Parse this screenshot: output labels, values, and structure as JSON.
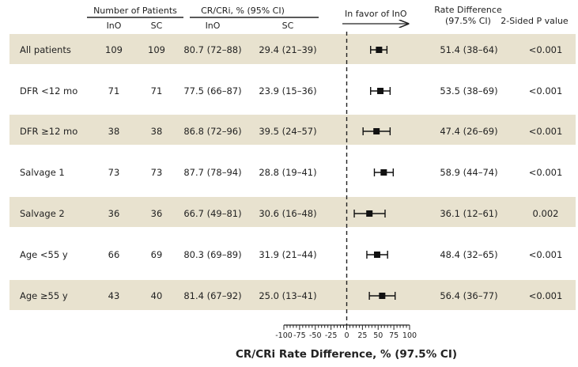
{
  "headers": {
    "group_patients": "Number of Patients",
    "group_response": "CR/CRi, % (95% CI)",
    "favor": "In favor of InO",
    "rate_diff_line1": "Rate Difference",
    "rate_diff_line2": "(97.5% CI)",
    "p_value": "2-Sided P value",
    "col_ino": "InO",
    "col_sc": "SC"
  },
  "rows": [
    {
      "label": "All patients",
      "n_ino": "109",
      "n_sc": "109",
      "cr_ino": "80.7 (72–88)",
      "cr_sc": "29.4 (21–39)",
      "rate_diff": "51.4 (38–64)",
      "p": "<0.001"
    },
    {
      "label": "DFR <12 mo",
      "n_ino": "71",
      "n_sc": "71",
      "cr_ino": "77.5 (66–87)",
      "cr_sc": "23.9 (15–36)",
      "rate_diff": "53.5 (38–69)",
      "p": "<0.001"
    },
    {
      "label": "DFR ≥12 mo",
      "n_ino": "38",
      "n_sc": "38",
      "cr_ino": "86.8 (72–96)",
      "cr_sc": "39.5 (24–57)",
      "rate_diff": "47.4 (26–69)",
      "p": "<0.001"
    },
    {
      "label": "Salvage 1",
      "n_ino": "73",
      "n_sc": "73",
      "cr_ino": "87.7 (78–94)",
      "cr_sc": "28.8 (19–41)",
      "rate_diff": "58.9 (44–74)",
      "p": "<0.001"
    },
    {
      "label": "Salvage 2",
      "n_ino": "36",
      "n_sc": "36",
      "cr_ino": "66.7 (49–81)",
      "cr_sc": "30.6 (16–48)",
      "rate_diff": "36.1 (12–61)",
      "p": "0.002"
    },
    {
      "label": "Age <55 y",
      "n_ino": "66",
      "n_sc": "69",
      "cr_ino": "80.3 (69–89)",
      "cr_sc": "31.9 (21–44)",
      "rate_diff": "48.4 (32–65)",
      "p": "<0.001"
    },
    {
      "label": "Age ≥55 y",
      "n_ino": "43",
      "n_sc": "40",
      "cr_ino": "81.4 (67–92)",
      "cr_sc": "25.0 (13–41)",
      "rate_diff": "56.4 (36–77)",
      "p": "<0.001"
    }
  ],
  "colors": {
    "band": "#e8e2cf",
    "marker": "#111111"
  },
  "chart_data": {
    "type": "scatter",
    "subtype": "forest-plot",
    "categories": [
      "All patients",
      "DFR <12 mo",
      "DFR ≥12 mo",
      "Salvage 1",
      "Salvage 2",
      "Age <55 y",
      "Age ≥55 y"
    ],
    "series": [
      {
        "estimate": [
          51.4,
          53.5,
          47.4,
          58.9,
          36.1,
          48.4,
          56.4
        ],
        "ci_low": [
          38,
          38,
          26,
          44,
          12,
          32,
          36
        ],
        "ci_high": [
          64,
          69,
          69,
          74,
          61,
          65,
          77
        ]
      }
    ],
    "xlabel": "CR/CRi Rate Difference, % (97.5% CI)",
    "ylabel": "",
    "xlim": [
      -100,
      100
    ],
    "xticks": [
      -100,
      -75,
      -50,
      -25,
      0,
      25,
      50,
      75,
      100
    ],
    "reference_line": 0,
    "grid": false
  }
}
